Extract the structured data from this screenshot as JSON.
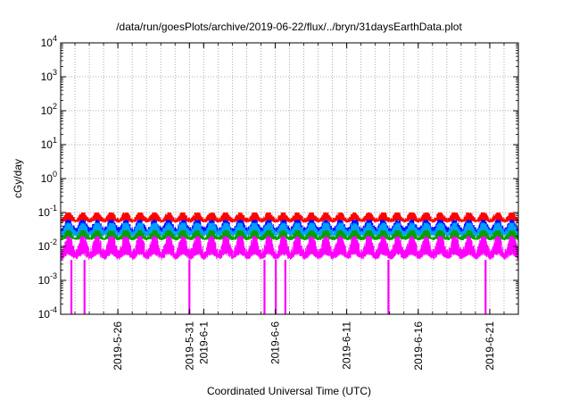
{
  "chart_data": {
    "type": "line",
    "title": "/data/run/goesPlots/archive/2019-06-22/flux/../bryn/31daysEarthData.plot",
    "xlabel": "Coordinated Universal Time (UTC)",
    "ylabel": "cGy/day",
    "yscale": "log",
    "ylim": [
      0.0001,
      10000
    ],
    "y_ticks": [
      {
        "mant": "10",
        "exp": "-4"
      },
      {
        "mant": "10",
        "exp": "-3"
      },
      {
        "mant": "10",
        "exp": "-2"
      },
      {
        "mant": "10",
        "exp": "-1"
      },
      {
        "mant": "10",
        "exp": "0"
      },
      {
        "mant": "10",
        "exp": "1"
      },
      {
        "mant": "10",
        "exp": "2"
      },
      {
        "mant": "10",
        "exp": "3"
      },
      {
        "mant": "10",
        "exp": "4"
      }
    ],
    "xlim": [
      "2019-05-22",
      "2019-06-23"
    ],
    "x_tick_labels": [
      "2019-5-26",
      "2019-5-31",
      "2019-6-1",
      "2019-6-6",
      "2019-6-11",
      "2019-6-16",
      "2019-6-21"
    ],
    "x_tick_dates": [
      "2019-05-26",
      "2019-05-31",
      "2019-06-01",
      "2019-06-06",
      "2019-06-11",
      "2019-06-16",
      "2019-06-21"
    ],
    "grid": true,
    "series": [
      {
        "color": "#ff0000",
        "approx_daily_max": 0.1,
        "approx_daily_min": 0.05
      },
      {
        "color": "#0000ff",
        "approx_daily_max": 0.06,
        "approx_daily_min": 0.025
      },
      {
        "color": "#00a0ff",
        "approx_daily_max": 0.05,
        "approx_daily_min": 0.02
      },
      {
        "color": "#00a000",
        "approx_daily_max": 0.03,
        "approx_daily_min": 0.015
      },
      {
        "color": "#ff00ff",
        "approx_daily_max": 0.02,
        "approx_daily_min": 0.004
      }
    ],
    "dropouts": [
      "2019-05-22 18:00",
      "2019-05-23 16:00",
      "2019-05-31 00:00",
      "2019-06-05 06:00",
      "2019-06-06 01:00",
      "2019-06-06 17:00",
      "2019-06-13 22:00",
      "2019-06-20 17:00"
    ]
  }
}
